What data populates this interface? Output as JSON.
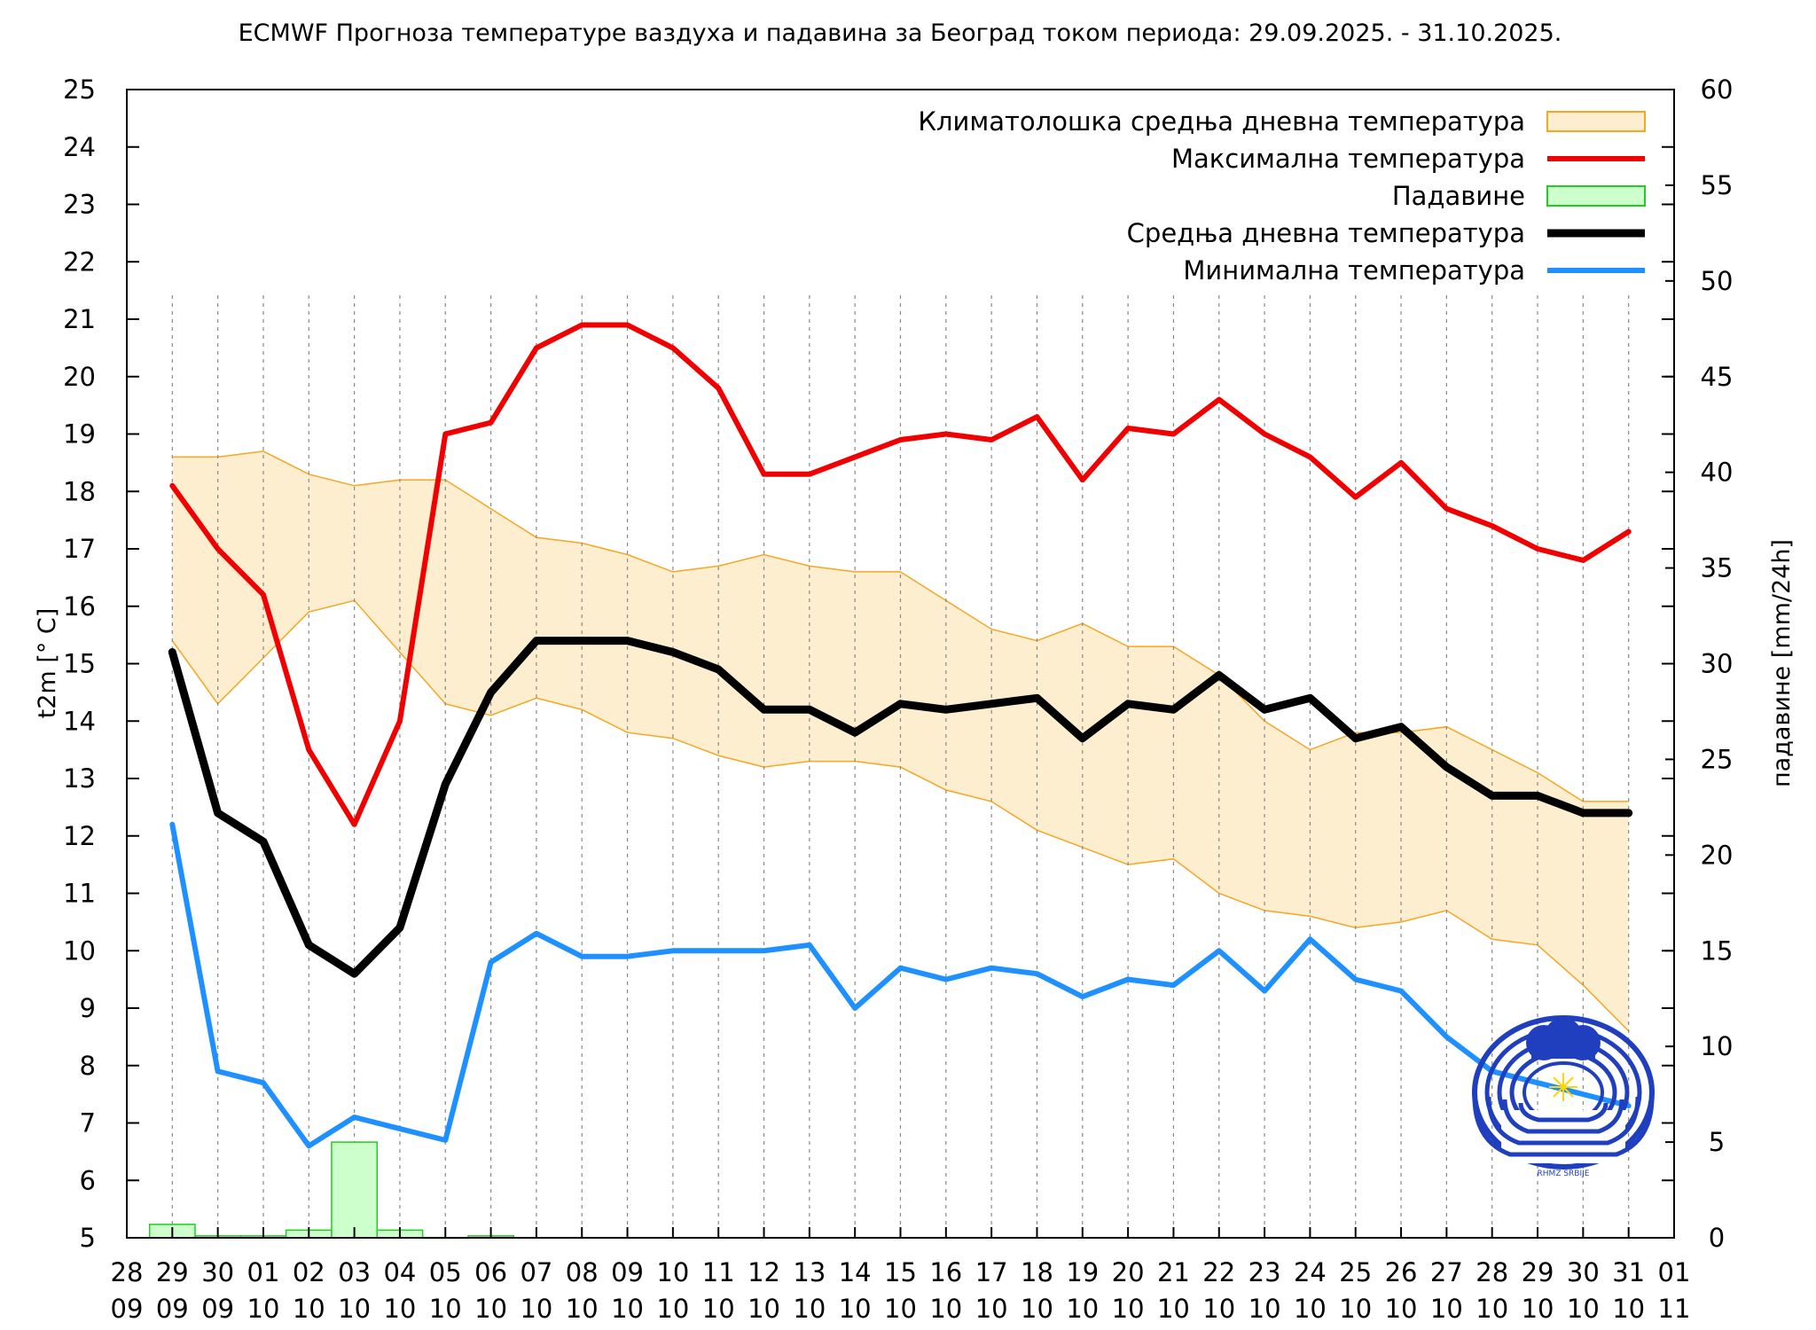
{
  "chart_data": {
    "type": "line",
    "title": "ECMWF Прогноза температуре ваздуха и падавина за Београд током периода: 29.09.2025. - 31.10.2025.",
    "ylabel": "t2m [° C]",
    "y2label": "падавине [mm/24h]",
    "ylim": [
      5,
      25
    ],
    "y2lim": [
      0,
      60
    ],
    "yticks": [
      "5",
      "6",
      "7",
      "8",
      "9",
      "10",
      "11",
      "12",
      "13",
      "14",
      "15",
      "16",
      "17",
      "18",
      "19",
      "20",
      "21",
      "22",
      "23",
      "24",
      "25"
    ],
    "y2ticks": [
      "0",
      "5",
      "10",
      "15",
      "20",
      "25",
      "30",
      "35",
      "40",
      "45",
      "50",
      "55",
      "60"
    ],
    "xticks": [
      {
        "day": "28",
        "month": "09"
      },
      {
        "day": "29",
        "month": "09"
      },
      {
        "day": "30",
        "month": "09"
      },
      {
        "day": "01",
        "month": "10"
      },
      {
        "day": "02",
        "month": "10"
      },
      {
        "day": "03",
        "month": "10"
      },
      {
        "day": "04",
        "month": "10"
      },
      {
        "day": "05",
        "month": "10"
      },
      {
        "day": "06",
        "month": "10"
      },
      {
        "day": "07",
        "month": "10"
      },
      {
        "day": "08",
        "month": "10"
      },
      {
        "day": "09",
        "month": "10"
      },
      {
        "day": "10",
        "month": "10"
      },
      {
        "day": "11",
        "month": "10"
      },
      {
        "day": "12",
        "month": "10"
      },
      {
        "day": "13",
        "month": "10"
      },
      {
        "day": "14",
        "month": "10"
      },
      {
        "day": "15",
        "month": "10"
      },
      {
        "day": "16",
        "month": "10"
      },
      {
        "day": "17",
        "month": "10"
      },
      {
        "day": "18",
        "month": "10"
      },
      {
        "day": "19",
        "month": "10"
      },
      {
        "day": "20",
        "month": "10"
      },
      {
        "day": "21",
        "month": "10"
      },
      {
        "day": "22",
        "month": "10"
      },
      {
        "day": "23",
        "month": "10"
      },
      {
        "day": "24",
        "month": "10"
      },
      {
        "day": "25",
        "month": "10"
      },
      {
        "day": "26",
        "month": "10"
      },
      {
        "day": "27",
        "month": "10"
      },
      {
        "day": "28",
        "month": "10"
      },
      {
        "day": "29",
        "month": "10"
      },
      {
        "day": "30",
        "month": "10"
      },
      {
        "day": "31",
        "month": "10"
      },
      {
        "day": "01",
        "month": "11"
      }
    ],
    "xlim": [
      0,
      34
    ],
    "legend": [
      {
        "label": "Климатолошка средња дневна температура",
        "color": "#fdeecf",
        "edge": "#f5a623",
        "kind": "band"
      },
      {
        "label": "Максимална температура",
        "color": "#f00000",
        "kind": "line"
      },
      {
        "label": "Падавине",
        "color": "#ccffcc",
        "edge": "#22cc22",
        "kind": "bar"
      },
      {
        "label": "Средња дневна температура",
        "color": "#000000",
        "kind": "line"
      },
      {
        "label": "Минимална температура",
        "color": "#1e90ff",
        "kind": "line"
      }
    ],
    "climatology_upper": {
      "x": [
        1,
        2,
        3,
        4,
        5,
        6,
        7,
        8,
        9,
        10,
        11,
        12,
        13,
        14,
        15,
        16,
        17,
        18,
        19,
        20,
        21,
        22,
        23,
        24,
        25,
        26,
        27,
        28,
        29,
        30,
        31,
        32,
        33
      ],
      "y": [
        18.6,
        18.6,
        18.7,
        18.3,
        18.1,
        18.2,
        18.2,
        17.7,
        17.2,
        17.1,
        16.9,
        16.6,
        16.7,
        16.9,
        16.7,
        16.6,
        16.6,
        16.1,
        15.6,
        15.4,
        15.7,
        15.3,
        15.3,
        14.8,
        14.0,
        13.5,
        13.8,
        13.8,
        13.9,
        13.5,
        13.1,
        12.6,
        12.6
      ]
    },
    "climatology_lower": {
      "x": [
        1,
        2,
        3,
        4,
        5,
        6,
        7,
        8,
        9,
        10,
        11,
        12,
        13,
        14,
        15,
        16,
        17,
        18,
        19,
        20,
        21,
        22,
        23,
        24,
        25,
        26,
        27,
        28,
        29,
        30,
        31,
        32,
        33
      ],
      "y": [
        15.4,
        14.3,
        15.1,
        15.9,
        16.1,
        15.2,
        14.3,
        14.1,
        14.4,
        14.2,
        13.8,
        13.7,
        13.4,
        13.2,
        13.3,
        13.3,
        13.2,
        12.8,
        12.6,
        12.1,
        11.8,
        11.5,
        11.6,
        11.0,
        10.7,
        10.6,
        10.4,
        10.5,
        10.7,
        10.2,
        10.1,
        9.4,
        8.6
      ]
    },
    "series": [
      {
        "name": "Максимална температура",
        "color": "#f00000",
        "x": [
          1,
          2,
          3,
          4,
          5,
          6,
          7,
          8,
          9,
          10,
          11,
          12,
          13,
          14,
          15,
          16,
          17,
          18,
          19,
          20,
          21,
          22,
          23,
          24,
          25,
          26,
          27,
          28,
          29,
          30,
          31,
          32,
          33
        ],
        "values": [
          18.1,
          17.0,
          16.2,
          13.5,
          12.2,
          14.0,
          19.0,
          19.2,
          20.5,
          20.9,
          20.9,
          20.5,
          19.8,
          18.3,
          18.3,
          18.6,
          18.9,
          19.0,
          18.9,
          19.3,
          18.2,
          19.1,
          19.0,
          19.6,
          19.0,
          18.6,
          17.9,
          18.5,
          17.7,
          17.4,
          17.0,
          16.8,
          17.3
        ]
      },
      {
        "name": "Средња дневна температура",
        "color": "#000000",
        "x": [
          1,
          2,
          3,
          4,
          5,
          6,
          7,
          8,
          9,
          10,
          11,
          12,
          13,
          14,
          15,
          16,
          17,
          18,
          19,
          20,
          21,
          22,
          23,
          24,
          25,
          26,
          27,
          28,
          29,
          30,
          31,
          32,
          33
        ],
        "values": [
          15.2,
          12.4,
          11.9,
          10.1,
          9.6,
          10.4,
          12.9,
          14.5,
          15.4,
          15.4,
          15.4,
          15.2,
          14.9,
          14.2,
          14.2,
          13.8,
          14.3,
          14.2,
          14.3,
          14.4,
          13.7,
          14.3,
          14.2,
          14.8,
          14.2,
          14.4,
          13.7,
          13.9,
          13.2,
          12.7,
          12.7,
          12.4,
          12.4
        ]
      },
      {
        "name": "Минимална температура",
        "color": "#1e90ff",
        "x": [
          1,
          2,
          3,
          4,
          5,
          6,
          7,
          8,
          9,
          10,
          11,
          12,
          13,
          14,
          15,
          16,
          17,
          18,
          19,
          20,
          21,
          22,
          23,
          24,
          25,
          26,
          27,
          28,
          29,
          30,
          31,
          32,
          33
        ],
        "values": [
          12.2,
          7.9,
          7.7,
          6.6,
          7.1,
          6.9,
          6.7,
          9.8,
          10.3,
          9.9,
          9.9,
          10.0,
          10.0,
          10.0,
          10.1,
          9.0,
          9.7,
          9.5,
          9.7,
          9.6,
          9.2,
          9.5,
          9.4,
          10.0,
          9.3,
          10.2,
          9.5,
          9.3,
          8.5,
          7.9,
          7.7,
          7.5,
          7.3
        ]
      }
    ],
    "precipitation": {
      "x": [
        1,
        2,
        3,
        4,
        5,
        6,
        7,
        8
      ],
      "values": [
        0.7,
        0.1,
        0.1,
        0.4,
        5.0,
        0.4,
        0.0,
        0.1
      ]
    },
    "grid": "vertical dotted lines on each day",
    "legend_position": "top-right"
  },
  "logo": {
    "name": "RHMZ Serbia logo",
    "text": "RHMZ SRBIJE"
  }
}
